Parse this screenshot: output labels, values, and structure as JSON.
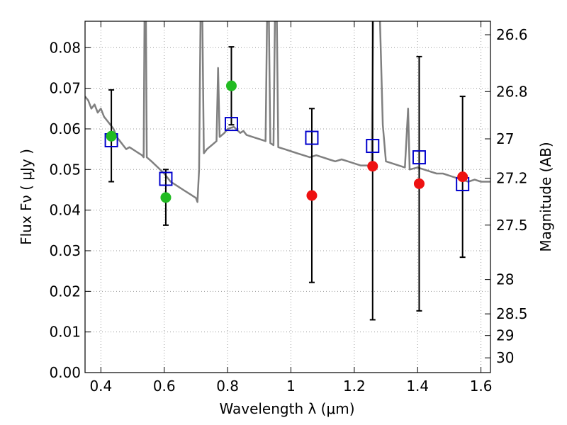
{
  "chart_data": {
    "type": "scatter",
    "xlabel": "Wavelength  λ (μm)",
    "ylabel": "Flux  Fν  ( μJy )",
    "y2label": "Magnitude (AB)",
    "xlim": [
      0.35,
      1.63
    ],
    "ylim": [
      0.0,
      0.0865
    ],
    "grid": true,
    "x_ticks": [
      "0.4",
      "0.6",
      "0.8",
      "1",
      "1.2",
      "1.4",
      "1.6"
    ],
    "x_tick_values": [
      0.4,
      0.6,
      0.8,
      1.0,
      1.2,
      1.4,
      1.6
    ],
    "y_ticks": [
      "0.00",
      "0.01",
      "0.02",
      "0.03",
      "0.04",
      "0.05",
      "0.06",
      "0.07",
      "0.08"
    ],
    "y_tick_values": [
      0.0,
      0.01,
      0.02,
      0.03,
      0.04,
      0.05,
      0.06,
      0.07,
      0.08
    ],
    "mag_ticks": [
      "26.6",
      "26.8",
      "27",
      "27.2",
      "27.5",
      "28",
      "28.5",
      "29",
      "30"
    ],
    "mag_tick_values": [
      26.6,
      26.8,
      27.0,
      27.2,
      27.5,
      28.0,
      28.5,
      29.0,
      30.0
    ],
    "colors": {
      "spectrum": "#808080",
      "green": "#22bb22",
      "red": "#ee1111",
      "model_square": "#0000cc",
      "errorbar": "#000000",
      "grid": "#999999"
    },
    "series": [
      {
        "kind": "spectrum",
        "color": "#808080",
        "points": [
          [
            0.35,
            0.068
          ],
          [
            0.36,
            0.067
          ],
          [
            0.37,
            0.065
          ],
          [
            0.38,
            0.066
          ],
          [
            0.39,
            0.064
          ],
          [
            0.4,
            0.065
          ],
          [
            0.41,
            0.063
          ],
          [
            0.42,
            0.062
          ],
          [
            0.43,
            0.061
          ],
          [
            0.44,
            0.06
          ],
          [
            0.45,
            0.058
          ],
          [
            0.46,
            0.057
          ],
          [
            0.47,
            0.056
          ],
          [
            0.48,
            0.055
          ],
          [
            0.49,
            0.0555
          ],
          [
            0.5,
            0.055
          ],
          [
            0.51,
            0.0545
          ],
          [
            0.52,
            0.054
          ],
          [
            0.53,
            0.0535
          ],
          [
            0.535,
            0.053
          ],
          [
            0.538,
            0.09
          ],
          [
            0.542,
            0.09
          ],
          [
            0.545,
            0.053
          ],
          [
            0.56,
            0.052
          ],
          [
            0.58,
            0.0505
          ],
          [
            0.6,
            0.049
          ],
          [
            0.62,
            0.047
          ],
          [
            0.64,
            0.046
          ],
          [
            0.66,
            0.045
          ],
          [
            0.68,
            0.044
          ],
          [
            0.7,
            0.043
          ],
          [
            0.705,
            0.042
          ],
          [
            0.71,
            0.05
          ],
          [
            0.715,
            0.09
          ],
          [
            0.72,
            0.09
          ],
          [
            0.725,
            0.054
          ],
          [
            0.735,
            0.055
          ],
          [
            0.75,
            0.056
          ],
          [
            0.765,
            0.057
          ],
          [
            0.77,
            0.075
          ],
          [
            0.775,
            0.058
          ],
          [
            0.79,
            0.059
          ],
          [
            0.8,
            0.06
          ],
          [
            0.82,
            0.0605
          ],
          [
            0.84,
            0.059
          ],
          [
            0.85,
            0.0595
          ],
          [
            0.86,
            0.0585
          ],
          [
            0.88,
            0.058
          ],
          [
            0.9,
            0.0575
          ],
          [
            0.92,
            0.057
          ],
          [
            0.925,
            0.09
          ],
          [
            0.93,
            0.09
          ],
          [
            0.935,
            0.0565
          ],
          [
            0.945,
            0.056
          ],
          [
            0.95,
            0.09
          ],
          [
            0.955,
            0.09
          ],
          [
            0.96,
            0.0555
          ],
          [
            0.98,
            0.055
          ],
          [
            1.0,
            0.0545
          ],
          [
            1.02,
            0.054
          ],
          [
            1.04,
            0.0535
          ],
          [
            1.06,
            0.053
          ],
          [
            1.08,
            0.0535
          ],
          [
            1.1,
            0.053
          ],
          [
            1.12,
            0.0525
          ],
          [
            1.14,
            0.052
          ],
          [
            1.16,
            0.0525
          ],
          [
            1.18,
            0.052
          ],
          [
            1.2,
            0.0515
          ],
          [
            1.22,
            0.051
          ],
          [
            1.24,
            0.051
          ],
          [
            1.255,
            0.0505
          ],
          [
            1.26,
            0.09
          ],
          [
            1.27,
            0.09
          ],
          [
            1.28,
            0.09
          ],
          [
            1.29,
            0.061
          ],
          [
            1.3,
            0.052
          ],
          [
            1.32,
            0.0515
          ],
          [
            1.34,
            0.051
          ],
          [
            1.36,
            0.0505
          ],
          [
            1.37,
            0.065
          ],
          [
            1.375,
            0.05
          ],
          [
            1.4,
            0.0505
          ],
          [
            1.42,
            0.05
          ],
          [
            1.44,
            0.0495
          ],
          [
            1.46,
            0.049
          ],
          [
            1.48,
            0.049
          ],
          [
            1.5,
            0.0485
          ],
          [
            1.52,
            0.048
          ],
          [
            1.54,
            0.0475
          ],
          [
            1.56,
            0.047
          ],
          [
            1.58,
            0.0475
          ],
          [
            1.6,
            0.047
          ],
          [
            1.63,
            0.047
          ]
        ]
      },
      {
        "kind": "model",
        "color": "#0000cc",
        "x": [
          0.433,
          0.605,
          0.812,
          1.066,
          1.258,
          1.405,
          1.542
        ],
        "y": [
          0.0572,
          0.0477,
          0.0612,
          0.0578,
          0.0558,
          0.053,
          0.0464
        ]
      },
      {
        "kind": "observed",
        "color": "#22bb22",
        "x": [
          0.433,
          0.605,
          0.812
        ],
        "y": [
          0.0582,
          0.0431,
          0.0706
        ],
        "yerr_low": [
          0.0112,
          0.0068,
          0.0096
        ],
        "yerr_high": [
          0.0114,
          0.0069,
          0.0096
        ]
      },
      {
        "kind": "observed",
        "color": "#ee1111",
        "x": [
          1.066,
          1.258,
          1.405,
          1.542
        ],
        "y": [
          0.0436,
          0.0508,
          0.0465,
          0.0482
        ],
        "yerr_low": [
          0.0214,
          0.0378,
          0.0313,
          0.0198
        ],
        "yerr_high": [
          0.0214,
          0.0378,
          0.0313,
          0.0198
        ]
      }
    ]
  }
}
